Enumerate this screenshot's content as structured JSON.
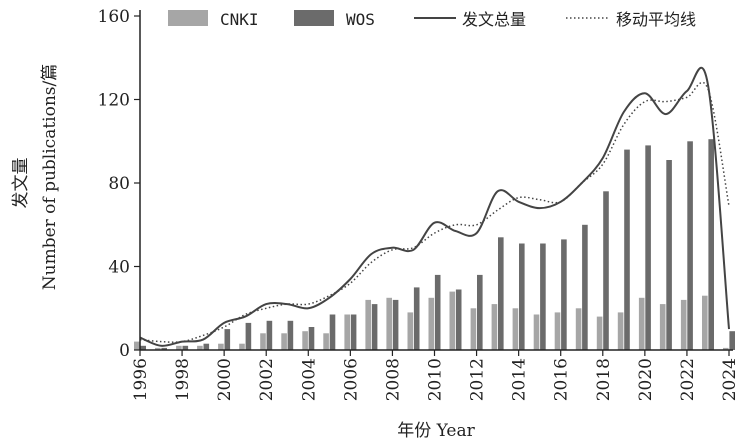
{
  "chart_data": {
    "type": "bar",
    "x": [
      1996,
      1997,
      1998,
      1999,
      2000,
      2001,
      2002,
      2003,
      2004,
      2005,
      2006,
      2007,
      2008,
      2009,
      2010,
      2011,
      2012,
      2013,
      2014,
      2015,
      2016,
      2017,
      2018,
      2019,
      2020,
      2021,
      2022,
      2023,
      2024
    ],
    "series": [
      {
        "name": "CNKI",
        "kind": "bar",
        "color": "#a6a6a6",
        "values": [
          4,
          1,
          2,
          2,
          3,
          3,
          8,
          8,
          9,
          8,
          17,
          24,
          25,
          18,
          25,
          28,
          20,
          22,
          20,
          17,
          18,
          20,
          16,
          18,
          25,
          22,
          24,
          26,
          1
        ]
      },
      {
        "name": "WOS",
        "kind": "bar",
        "color": "#6b6b6b",
        "values": [
          2,
          1,
          2,
          3,
          10,
          13,
          14,
          14,
          11,
          17,
          17,
          22,
          24,
          30,
          36,
          29,
          36,
          54,
          51,
          51,
          53,
          60,
          76,
          96,
          98,
          91,
          100,
          101,
          9
        ]
      },
      {
        "name": "发文总量",
        "kind": "line",
        "color": "#444444",
        "values": [
          6,
          2,
          4,
          5,
          13,
          16,
          22,
          22,
          20,
          25,
          34,
          46,
          49,
          48,
          61,
          57,
          56,
          76,
          71,
          68,
          71,
          80,
          92,
          114,
          123,
          113,
          124,
          127,
          10
        ]
      },
      {
        "name": "移动平均线",
        "kind": "dotted-line",
        "color": "#444444",
        "values": [
          5,
          4,
          4,
          7,
          11,
          17,
          20,
          22,
          22,
          26,
          32,
          42,
          48,
          49,
          56,
          60,
          60,
          67,
          73,
          72,
          71,
          80,
          89,
          108,
          119,
          119,
          121,
          125,
          69
        ]
      }
    ],
    "xticks": [
      "1996",
      "1998",
      "2000",
      "2002",
      "2004",
      "2006",
      "2008",
      "2010",
      "2012",
      "2014",
      "2016",
      "2018",
      "2020",
      "2022",
      "2024"
    ],
    "yticks": [
      "0",
      "40",
      "80",
      "120",
      "160"
    ],
    "ylim": [
      0,
      160
    ],
    "xlabel": "年份 Year",
    "ylabel_zh": "发文量",
    "ylabel_en": "Number of publications/篇",
    "legend": {
      "placement": "top",
      "items": [
        "CNKI",
        "WOS",
        "发文总量",
        "移动平均线"
      ]
    },
    "grid": false
  }
}
